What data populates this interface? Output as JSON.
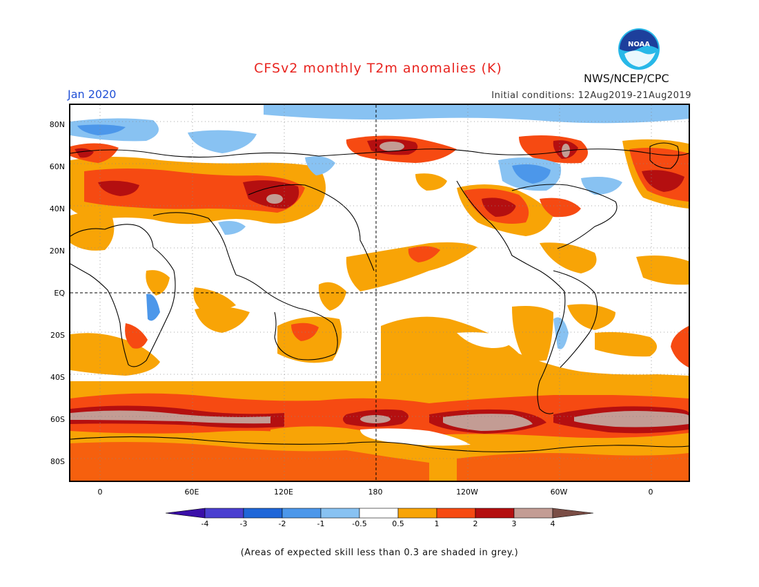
{
  "header": {
    "title": "CFSv2 monthly T2m anomalies (K)",
    "valid_month": "Jan 2020",
    "initial_conditions": "Initial conditions: 12Aug2019-21Aug2019",
    "agency": "NWS/NCEP/CPC",
    "logo_text": "NOAA"
  },
  "axes": {
    "lat_labels": [
      "80N",
      "60N",
      "40N",
      "20N",
      "EQ",
      "20S",
      "40S",
      "60S",
      "80S"
    ],
    "lon_labels": [
      "0",
      "60E",
      "120E",
      "180",
      "120W",
      "60W",
      "0"
    ]
  },
  "legend": {
    "labels": [
      "-4",
      "-3",
      "-2",
      "-1",
      "-0.5",
      "0.5",
      "1",
      "2",
      "3",
      "4"
    ],
    "colors": [
      "#3a0fa8",
      "#4a3fd0",
      "#1f66d8",
      "#4c97ea",
      "#88c2f2",
      "#ffffff",
      "#f8a406",
      "#f64a12",
      "#b40f10",
      "#c39c94",
      "#7a4d45"
    ]
  },
  "colors": {
    "title": "#e8231e",
    "date_label": "#1f4fd6",
    "light_warm": "#f8a406",
    "warm": "#f64a12",
    "hot": "#b40f10",
    "very_hot": "#c39c94",
    "light_cool": "#88c2f2",
    "cool": "#4c97ea"
  },
  "footnote": "(Areas of expected skill less than 0.3 are shaded in grey.)"
}
